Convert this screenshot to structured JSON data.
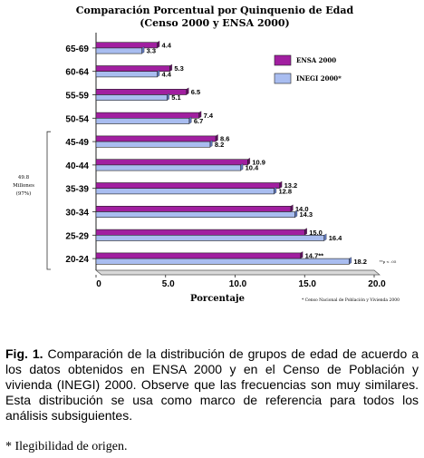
{
  "chart_data": {
    "type": "bar",
    "orientation": "horizontal",
    "title": "Comparación Porcentual por Quinquenio de Edad",
    "subtitle": "(Censo 2000 y ENSA 2000)",
    "xlabel": "Porcentaje",
    "ylabel": "",
    "xlim": [
      0,
      20
    ],
    "xticks": [
      "0",
      "5.0",
      "10.0",
      "15.0",
      "20.0"
    ],
    "categories": [
      "65-69",
      "60-64",
      "55-59",
      "50-54",
      "45-49",
      "40-44",
      "35-39",
      "30-34",
      "25-29",
      "20-24"
    ],
    "series": [
      {
        "name": "ENSA 2000",
        "color": "#a11fa0",
        "values": [
          4.4,
          5.3,
          6.5,
          7.4,
          8.6,
          10.9,
          13.2,
          14.0,
          15.0,
          14.7
        ],
        "labels": [
          "4.4",
          "5.3",
          "6.5",
          "7.4",
          "8.6",
          "10.9",
          "13.2",
          "14.0",
          "15.0",
          "14.7**"
        ]
      },
      {
        "name": "INEGI 2000*",
        "color": "#a9bdf0",
        "values": [
          3.3,
          4.4,
          5.1,
          6.7,
          8.2,
          10.4,
          12.8,
          14.3,
          16.4,
          18.2
        ],
        "labels": [
          "3.3",
          "4.4",
          "5.1",
          "6.7",
          "8.2",
          "10.4",
          "12.8",
          "14.3",
          "16.4",
          "18.2"
        ]
      }
    ],
    "bracket_label": [
      "49.8",
      "Millones",
      "(97%)"
    ],
    "significance_note": "**p < .05",
    "source_note": "* Censo Nacional de Población y Vivienda 2000",
    "grid": false,
    "legend_position": "top-right"
  },
  "caption": {
    "fig_label": "Fig. 1.",
    "text": "Comparación de la distribución de grupos de edad de acuerdo a los datos obtenidos en ENSA 2000 y en el Censo de Población y vivienda (INEGI) 2000. Observe que las frecuencias son muy similares. Esta distribución se usa como marco de referencia para todos los análisis subsiguientes."
  },
  "footnote": "* Ilegibilidad de origen."
}
